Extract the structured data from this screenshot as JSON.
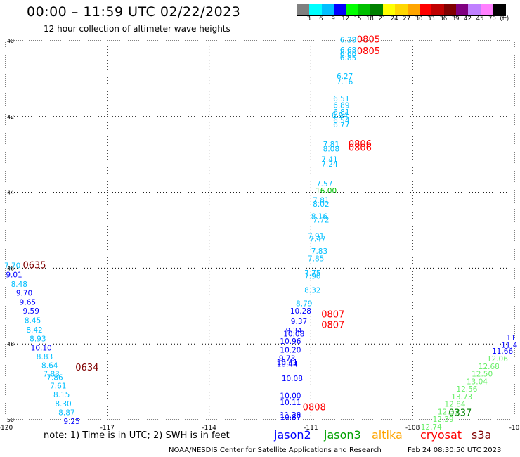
{
  "header": {
    "title": "00:00 – 11:59 UTC 02/22/2023",
    "subtitle": "12 hour collection of altimeter wave heights"
  },
  "color_scale": {
    "colors": [
      "#808080",
      "#00ffff",
      "#00bfff",
      "#0000ff",
      "#00ff00",
      "#00c000",
      "#008000",
      "#ffff00",
      "#ffd700",
      "#ffa500",
      "#ff0000",
      "#c00000",
      "#800000",
      "#800080",
      "#c080ff",
      "#ff80ff",
      "#000000"
    ],
    "labels": [
      "3",
      "6",
      "9",
      "12",
      "15",
      "18",
      "21",
      "24",
      "27",
      "30",
      "33",
      "36",
      "39",
      "42",
      "45",
      "70",
      "(ft)"
    ]
  },
  "axes": {
    "x_ticks": [
      "-120",
      "-117",
      "-114",
      "-111",
      "-108",
      "-10"
    ],
    "y_ticks": [
      "40",
      "42",
      "44",
      "46",
      "48",
      "50"
    ]
  },
  "chart_data": {
    "type": "scatter",
    "x_range": [
      -120,
      -105
    ],
    "y_range": [
      40,
      50
    ],
    "track_labels": [
      {
        "text": "0635",
        "lon": -119.15,
        "lat": 46.0,
        "color": "#800000"
      },
      {
        "text": "0634",
        "lon": -117.6,
        "lat": 48.7,
        "color": "#800000"
      },
      {
        "text": "0805",
        "lon": -109.3,
        "lat": 40.05,
        "color": "#ff0000"
      },
      {
        "text": "0805",
        "lon": -109.3,
        "lat": 40.35,
        "color": "#ff0000"
      },
      {
        "text": "0806",
        "lon": -109.55,
        "lat": 42.8,
        "color": "#ff0000"
      },
      {
        "text": "0806",
        "lon": -109.55,
        "lat": 42.9,
        "color": "#ff0000"
      },
      {
        "text": "0807",
        "lon": -110.35,
        "lat": 47.3,
        "color": "#ff0000"
      },
      {
        "text": "0807",
        "lon": -110.35,
        "lat": 47.58,
        "color": "#ff0000"
      },
      {
        "text": "0808",
        "lon": -110.9,
        "lat": 49.75,
        "color": "#ff0000"
      },
      {
        "text": "0337",
        "lon": -106.6,
        "lat": 49.9,
        "color": "#008000"
      }
    ],
    "points": [
      {
        "text": "7.70",
        "lon": -119.8,
        "lat": 46.0,
        "color": "#00bfff"
      },
      {
        "text": "9.01",
        "lon": -119.75,
        "lat": 46.24,
        "color": "#0000ff"
      },
      {
        "text": "8.48",
        "lon": -119.6,
        "lat": 46.49,
        "color": "#00bfff"
      },
      {
        "text": "9.70",
        "lon": -119.45,
        "lat": 46.73,
        "color": "#0000ff"
      },
      {
        "text": "9.65",
        "lon": -119.35,
        "lat": 46.97,
        "color": "#0000ff"
      },
      {
        "text": "9.59",
        "lon": -119.25,
        "lat": 47.2,
        "color": "#0000ff"
      },
      {
        "text": "8.45",
        "lon": -119.2,
        "lat": 47.45,
        "color": "#00bfff"
      },
      {
        "text": "8.42",
        "lon": -119.15,
        "lat": 47.7,
        "color": "#00bfff"
      },
      {
        "text": "8.93",
        "lon": -119.05,
        "lat": 47.93,
        "color": "#00bfff"
      },
      {
        "text": "10.10",
        "lon": -118.95,
        "lat": 48.17,
        "color": "#0000ff"
      },
      {
        "text": "8.83",
        "lon": -118.85,
        "lat": 48.4,
        "color": "#00bfff"
      },
      {
        "text": "8.64",
        "lon": -118.7,
        "lat": 48.64,
        "color": "#00bfff"
      },
      {
        "text": "7.83",
        "lon": -118.65,
        "lat": 48.86,
        "color": "#00bfff"
      },
      {
        "text": "7.86",
        "lon": -118.55,
        "lat": 48.95,
        "color": "#00bfff"
      },
      {
        "text": "7.61",
        "lon": -118.45,
        "lat": 49.17,
        "color": "#00bfff"
      },
      {
        "text": "8.15",
        "lon": -118.35,
        "lat": 49.41,
        "color": "#00bfff"
      },
      {
        "text": "8.30",
        "lon": -118.3,
        "lat": 49.65,
        "color": "#00bfff"
      },
      {
        "text": "8.87",
        "lon": -118.2,
        "lat": 49.88,
        "color": "#00bfff"
      },
      {
        "text": "9.25",
        "lon": -118.05,
        "lat": 50.11,
        "color": "#0000ff"
      },
      {
        "text": "6.38",
        "lon": -109.9,
        "lat": 40.05,
        "color": "#00bfff"
      },
      {
        "text": "6.68",
        "lon": -109.9,
        "lat": 40.32,
        "color": "#00bfff"
      },
      {
        "text": "6.66",
        "lon": -109.9,
        "lat": 40.42,
        "color": "#00bfff"
      },
      {
        "text": "6.85",
        "lon": -109.9,
        "lat": 40.52,
        "color": "#00bfff"
      },
      {
        "text": "6.27",
        "lon": -110.0,
        "lat": 41.0,
        "color": "#00bfff"
      },
      {
        "text": "7.16",
        "lon": -110.0,
        "lat": 41.15,
        "color": "#00bfff"
      },
      {
        "text": "6.51",
        "lon": -110.1,
        "lat": 41.6,
        "color": "#00bfff"
      },
      {
        "text": "6.89",
        "lon": -110.1,
        "lat": 41.77,
        "color": "#00bfff"
      },
      {
        "text": "6.81",
        "lon": -110.1,
        "lat": 41.95,
        "color": "#00bfff"
      },
      {
        "text": "6.94",
        "lon": -110.15,
        "lat": 42.04,
        "color": "#00bfff"
      },
      {
        "text": "6.54",
        "lon": -110.1,
        "lat": 42.17,
        "color": "#00bfff"
      },
      {
        "text": "6.77",
        "lon": -110.1,
        "lat": 42.28,
        "color": "#00bfff"
      },
      {
        "text": "7.81",
        "lon": -110.4,
        "lat": 42.8,
        "color": "#00bfff"
      },
      {
        "text": "8.08",
        "lon": -110.4,
        "lat": 42.92,
        "color": "#00bfff"
      },
      {
        "text": "7.41",
        "lon": -110.45,
        "lat": 43.2,
        "color": "#00bfff"
      },
      {
        "text": "7.24",
        "lon": -110.45,
        "lat": 43.32,
        "color": "#00bfff"
      },
      {
        "text": "7.57",
        "lon": -110.6,
        "lat": 43.84,
        "color": "#00bfff"
      },
      {
        "text": "16.00",
        "lon": -110.55,
        "lat": 44.03,
        "color": "#00c000"
      },
      {
        "text": "7.81",
        "lon": -110.7,
        "lat": 44.28,
        "color": "#00bfff"
      },
      {
        "text": "8.02",
        "lon": -110.7,
        "lat": 44.38,
        "color": "#00bfff"
      },
      {
        "text": "8.16",
        "lon": -110.75,
        "lat": 44.7,
        "color": "#00bfff"
      },
      {
        "text": "7.72",
        "lon": -110.7,
        "lat": 44.8,
        "color": "#00bfff"
      },
      {
        "text": "7.91",
        "lon": -110.85,
        "lat": 45.22,
        "color": "#00bfff"
      },
      {
        "text": "7.47",
        "lon": -110.8,
        "lat": 45.3,
        "color": "#00bfff"
      },
      {
        "text": "7.83",
        "lon": -110.75,
        "lat": 45.62,
        "color": "#00bfff"
      },
      {
        "text": "7.85",
        "lon": -110.85,
        "lat": 45.82,
        "color": "#00bfff"
      },
      {
        "text": "7.75",
        "lon": -110.95,
        "lat": 46.2,
        "color": "#00bfff"
      },
      {
        "text": "7.90",
        "lon": -110.95,
        "lat": 46.28,
        "color": "#00bfff"
      },
      {
        "text": "8.32",
        "lon": -110.95,
        "lat": 46.65,
        "color": "#00bfff"
      },
      {
        "text": "8.79",
        "lon": -111.2,
        "lat": 47.0,
        "color": "#00bfff"
      },
      {
        "text": "10.28",
        "lon": -111.3,
        "lat": 47.2,
        "color": "#0000ff"
      },
      {
        "text": "9.37",
        "lon": -111.35,
        "lat": 47.48,
        "color": "#0000ff"
      },
      {
        "text": "9.34",
        "lon": -111.5,
        "lat": 47.72,
        "color": "#0000ff"
      },
      {
        "text": "10.08",
        "lon": -111.5,
        "lat": 47.8,
        "color": "#0000ff"
      },
      {
        "text": "10.96",
        "lon": -111.6,
        "lat": 48.0,
        "color": "#0000ff"
      },
      {
        "text": "10.20",
        "lon": -111.6,
        "lat": 48.23,
        "color": "#0000ff"
      },
      {
        "text": "9.73",
        "lon": -111.7,
        "lat": 48.45,
        "color": "#0000ff"
      },
      {
        "text": "10.41",
        "lon": -111.7,
        "lat": 48.55,
        "color": "#0000ff"
      },
      {
        "text": "10.44",
        "lon": -111.7,
        "lat": 48.6,
        "color": "#0000ff"
      },
      {
        "text": "10.08",
        "lon": -111.55,
        "lat": 48.98,
        "color": "#0000ff"
      },
      {
        "text": "10.00",
        "lon": -111.6,
        "lat": 49.43,
        "color": "#0000ff"
      },
      {
        "text": "10.11",
        "lon": -111.6,
        "lat": 49.61,
        "color": "#0000ff"
      },
      {
        "text": "11.28",
        "lon": -111.6,
        "lat": 49.94,
        "color": "#0000ff"
      },
      {
        "text": "10.87",
        "lon": -111.6,
        "lat": 50.0,
        "color": "#0000ff"
      },
      {
        "text": "11",
        "lon": -105.1,
        "lat": 47.9,
        "color": "#0000ff"
      },
      {
        "text": "11.4",
        "lon": -105.15,
        "lat": 48.1,
        "color": "#0000ff"
      },
      {
        "text": "11.66",
        "lon": -105.35,
        "lat": 48.26,
        "color": "#0000ff"
      },
      {
        "text": "12.06",
        "lon": -105.5,
        "lat": 48.46,
        "color": "#66ee66"
      },
      {
        "text": "12.68",
        "lon": -105.75,
        "lat": 48.66,
        "color": "#66ee66"
      },
      {
        "text": "12.50",
        "lon": -105.95,
        "lat": 48.86,
        "color": "#66ee66"
      },
      {
        "text": "13.04",
        "lon": -106.1,
        "lat": 49.06,
        "color": "#66ee66"
      },
      {
        "text": "12.56",
        "lon": -106.4,
        "lat": 49.26,
        "color": "#66ee66"
      },
      {
        "text": "13.73",
        "lon": -106.55,
        "lat": 49.46,
        "color": "#66ee66"
      },
      {
        "text": "12.84",
        "lon": -106.75,
        "lat": 49.66,
        "color": "#66ee66"
      },
      {
        "text": "12.33",
        "lon": -106.95,
        "lat": 49.86,
        "color": "#66ee66"
      },
      {
        "text": "12.39",
        "lon": -107.1,
        "lat": 50.06,
        "color": "#66ee66"
      },
      {
        "text": "12.74",
        "lon": -107.45,
        "lat": 50.26,
        "color": "#66ee66"
      }
    ]
  },
  "footer": {
    "note": "note: 1) Time is in UTC; 2) SWH is in feet",
    "satellites": [
      {
        "name": "jason2",
        "color": "#0000ff"
      },
      {
        "name": "jason3",
        "color": "#00a000"
      },
      {
        "name": "altika",
        "color": "#ffa500"
      },
      {
        "name": "cryosat",
        "color": "#ff0000"
      },
      {
        "name": "s3a",
        "color": "#800000"
      }
    ],
    "credit": "NOAA/NESDIS Center for Satellite Applications and Research",
    "timestamp": "Feb 24 08:30:50 UTC 2023"
  }
}
